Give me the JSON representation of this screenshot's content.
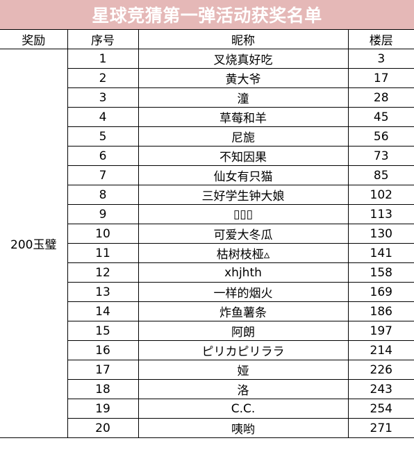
{
  "title": "星球竞猜第一弹活动获奖名单",
  "headers": {
    "reward": "奖励",
    "index": "序号",
    "nickname": "昵称",
    "floor": "楼层"
  },
  "reward": "200玉璧",
  "rows": [
    {
      "index": "1",
      "nickname": "叉烧真好吃",
      "floor": "3"
    },
    {
      "index": "2",
      "nickname": "黄大爷",
      "floor": "17"
    },
    {
      "index": "3",
      "nickname": "潼",
      "floor": "28"
    },
    {
      "index": "4",
      "nickname": "草莓和羊",
      "floor": "45"
    },
    {
      "index": "5",
      "nickname": "尼旎",
      "floor": "56"
    },
    {
      "index": "6",
      "nickname": "不知因果",
      "floor": "73"
    },
    {
      "index": "7",
      "nickname": "仙女有只猫",
      "floor": "85"
    },
    {
      "index": "8",
      "nickname": "三好学生钟大娘",
      "floor": "102"
    },
    {
      "index": "9",
      "nickname": "▯▯▯",
      "floor": "113"
    },
    {
      "index": "10",
      "nickname": "可爱大冬瓜",
      "floor": "130"
    },
    {
      "index": "11",
      "nickname": "枯树枝桠▵",
      "floor": "141"
    },
    {
      "index": "12",
      "nickname": "xhjhth",
      "floor": "158"
    },
    {
      "index": "13",
      "nickname": "一样的烟火",
      "floor": "169"
    },
    {
      "index": "14",
      "nickname": "炸鱼薯条",
      "floor": "186"
    },
    {
      "index": "15",
      "nickname": "阿朗",
      "floor": "197"
    },
    {
      "index": "16",
      "nickname": "ピリカピリララ",
      "floor": "214"
    },
    {
      "index": "17",
      "nickname": "娅",
      "floor": "226"
    },
    {
      "index": "18",
      "nickname": "洛",
      "floor": "243"
    },
    {
      "index": "19",
      "nickname": "C.C.",
      "floor": "254"
    },
    {
      "index": "20",
      "nickname": "咦哟",
      "floor": "271"
    }
  ]
}
